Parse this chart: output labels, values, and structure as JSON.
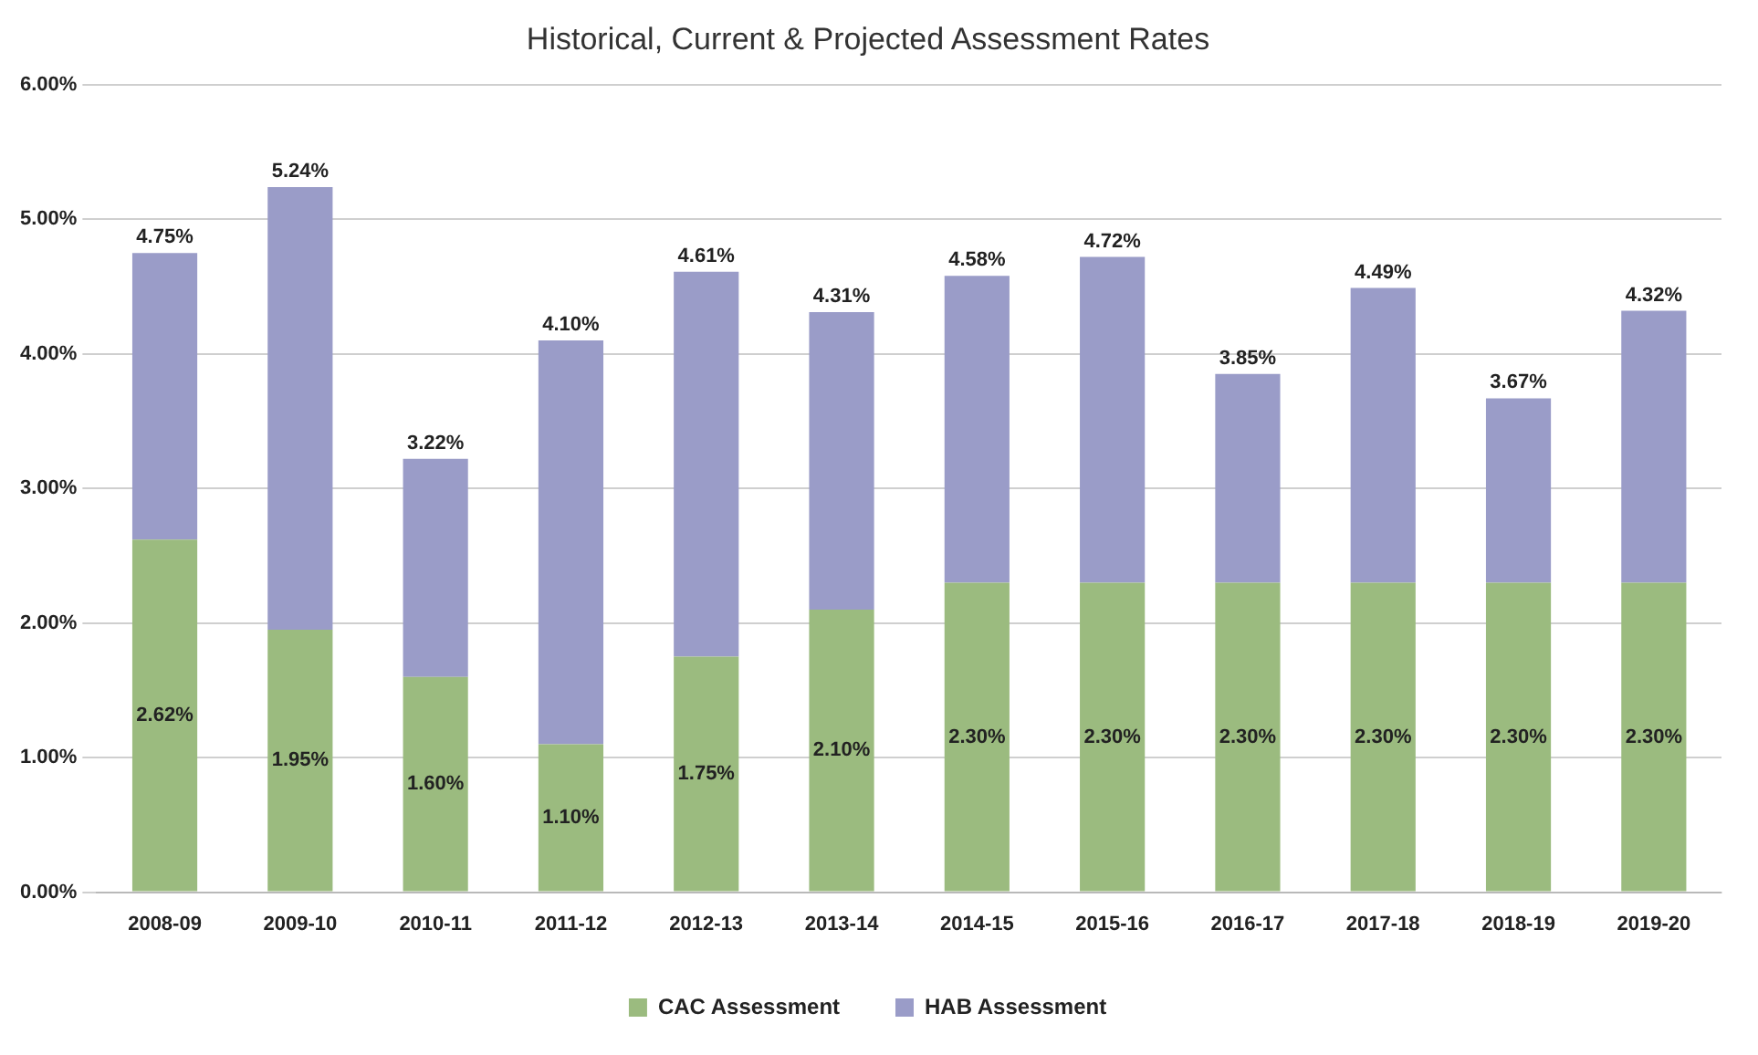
{
  "chart_data": {
    "type": "bar",
    "title": "Historical, Current & Projected Assessment Rates",
    "stacked": true,
    "categories": [
      "2008-09",
      "2009-10",
      "2010-11",
      "2011-12",
      "2012-13",
      "2013-14",
      "2014-15",
      "2015-16",
      "2016-17",
      "2017-18",
      "2018-19",
      "2019-20"
    ],
    "series": [
      {
        "name": "CAC Assessment",
        "color": "#9bbb7f",
        "values": [
          2.62,
          1.95,
          1.6,
          1.1,
          1.75,
          2.1,
          2.3,
          2.3,
          2.3,
          2.3,
          2.3,
          2.3
        ],
        "value_labels": [
          "2.62%",
          "1.95%",
          "1.60%",
          "1.10%",
          "1.75%",
          "2.10%",
          "2.30%",
          "2.30%",
          "2.30%",
          "2.30%",
          "2.30%",
          "2.30%"
        ]
      },
      {
        "name": "HAB Assessment",
        "color": "#9a9cc8",
        "values": [
          2.13,
          3.29,
          1.62,
          3.0,
          2.86,
          2.21,
          2.28,
          2.42,
          1.55,
          2.19,
          1.37,
          2.02
        ]
      }
    ],
    "totals": [
      "4.75%",
      "5.24%",
      "3.22%",
      "4.10%",
      "4.61%",
      "4.31%",
      "4.58%",
      "4.72%",
      "3.85%",
      "4.49%",
      "3.67%",
      "4.32%"
    ],
    "ylim": [
      0,
      6
    ],
    "yticks": [
      {
        "value": 0,
        "label": "0.00%"
      },
      {
        "value": 1,
        "label": "1.00%"
      },
      {
        "value": 2,
        "label": "2.00%"
      },
      {
        "value": 3,
        "label": "3.00%"
      },
      {
        "value": 4,
        "label": "4.00%"
      },
      {
        "value": 5,
        "label": "5.00%"
      },
      {
        "value": 6,
        "label": "6.00%"
      }
    ],
    "grid": "y",
    "legend": "bottom"
  }
}
